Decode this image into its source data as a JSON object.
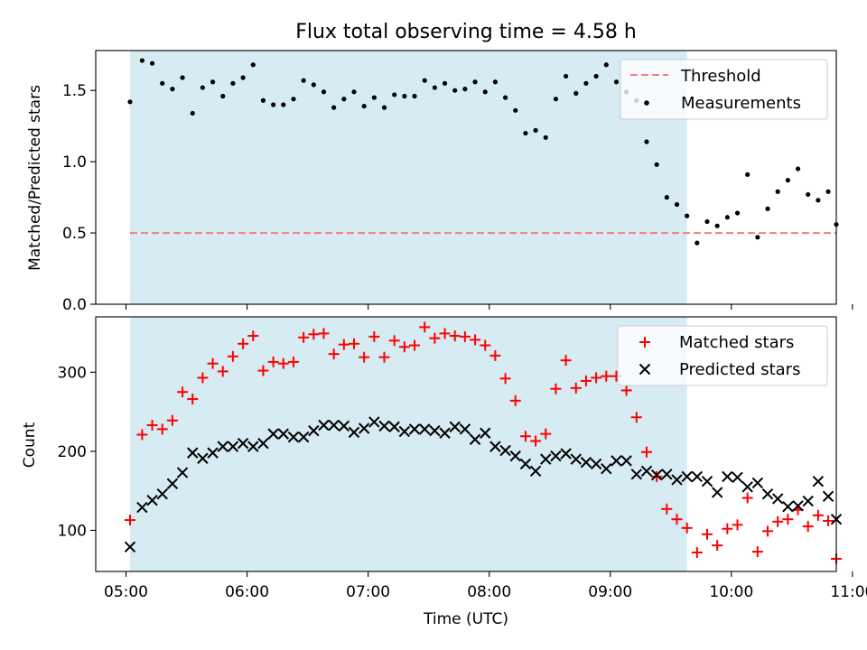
{
  "figure": {
    "title": "Flux total observing time = 4.58 h",
    "xlabel": "Time (UTC)"
  },
  "chart_data": [
    {
      "type": "scatter",
      "ylabel": "Matched/Predicted stars",
      "ylim": [
        0,
        1.78
      ],
      "xlim": [
        "04:45",
        "10:52"
      ],
      "yticks": [
        0.0,
        0.5,
        1.0,
        1.5
      ],
      "ytick_labels": [
        "0.0",
        "0.5",
        "1.0",
        "1.5"
      ],
      "legend_position": "top-right",
      "shaded_span": {
        "start": "05:02",
        "end": "09:38",
        "color": "#add8e6"
      },
      "threshold": {
        "name": "Threshold",
        "y": 0.5,
        "x_start": "05:02",
        "x_end": "10:52",
        "color": "#f08080"
      },
      "series": [
        {
          "name": "Measurements",
          "marker": "dot",
          "color": "#000000",
          "points": [
            [
              "05:02",
              1.42
            ],
            [
              "05:08",
              1.71
            ],
            [
              "05:13",
              1.69
            ],
            [
              "05:18",
              1.55
            ],
            [
              "05:23",
              1.51
            ],
            [
              "05:28",
              1.59
            ],
            [
              "05:33",
              1.34
            ],
            [
              "05:38",
              1.52
            ],
            [
              "05:43",
              1.56
            ],
            [
              "05:48",
              1.46
            ],
            [
              "05:53",
              1.55
            ],
            [
              "05:58",
              1.59
            ],
            [
              "06:03",
              1.68
            ],
            [
              "06:08",
              1.43
            ],
            [
              "06:13",
              1.4
            ],
            [
              "06:18",
              1.4
            ],
            [
              "06:23",
              1.44
            ],
            [
              "06:28",
              1.57
            ],
            [
              "06:33",
              1.54
            ],
            [
              "06:38",
              1.49
            ],
            [
              "06:43",
              1.38
            ],
            [
              "06:48",
              1.44
            ],
            [
              "06:53",
              1.49
            ],
            [
              "06:58",
              1.39
            ],
            [
              "07:03",
              1.45
            ],
            [
              "07:08",
              1.38
            ],
            [
              "07:13",
              1.47
            ],
            [
              "07:18",
              1.46
            ],
            [
              "07:23",
              1.46
            ],
            [
              "07:28",
              1.57
            ],
            [
              "07:33",
              1.52
            ],
            [
              "07:38",
              1.55
            ],
            [
              "07:43",
              1.5
            ],
            [
              "07:48",
              1.51
            ],
            [
              "07:53",
              1.56
            ],
            [
              "07:58",
              1.49
            ],
            [
              "08:03",
              1.56
            ],
            [
              "08:08",
              1.45
            ],
            [
              "08:13",
              1.36
            ],
            [
              "08:18",
              1.2
            ],
            [
              "08:23",
              1.22
            ],
            [
              "08:28",
              1.17
            ],
            [
              "08:33",
              1.44
            ],
            [
              "08:38",
              1.6
            ],
            [
              "08:43",
              1.48
            ],
            [
              "08:48",
              1.55
            ],
            [
              "08:53",
              1.6
            ],
            [
              "08:58",
              1.68
            ],
            [
              "09:03",
              1.56
            ],
            [
              "09:08",
              1.49
            ],
            [
              "09:13",
              1.43
            ],
            [
              "09:18",
              1.14
            ],
            [
              "09:23",
              0.98
            ],
            [
              "09:28",
              0.75
            ],
            [
              "09:33",
              0.7
            ],
            [
              "09:38",
              0.62
            ],
            [
              "09:43",
              0.43
            ],
            [
              "09:48",
              0.58
            ],
            [
              "09:53",
              0.55
            ],
            [
              "09:58",
              0.61
            ],
            [
              "10:03",
              0.64
            ],
            [
              "10:08",
              0.91
            ],
            [
              "10:13",
              0.47
            ],
            [
              "10:18",
              0.67
            ],
            [
              "10:23",
              0.79
            ],
            [
              "10:28",
              0.87
            ],
            [
              "10:33",
              0.95
            ],
            [
              "10:38",
              0.77
            ],
            [
              "10:43",
              0.73
            ],
            [
              "10:48",
              0.79
            ],
            [
              "10:52",
              0.56
            ]
          ]
        }
      ]
    },
    {
      "type": "scatter",
      "ylabel": "Count",
      "ylim": [
        48,
        370
      ],
      "xlim": [
        "04:45",
        "10:52"
      ],
      "yticks": [
        100,
        200,
        300
      ],
      "ytick_labels": [
        "100",
        "200",
        "300"
      ],
      "xticks": [
        "05:00",
        "06:00",
        "07:00",
        "08:00",
        "09:00",
        "10:00",
        "11:00"
      ],
      "xtick_labels": [
        "05:00",
        "06:00",
        "07:00",
        "08:00",
        "09:00",
        "10:00",
        "11:00"
      ],
      "legend_position": "top-right",
      "shaded_span": {
        "start": "05:02",
        "end": "09:38",
        "color": "#add8e6"
      },
      "series": [
        {
          "name": "Matched stars",
          "marker": "plus",
          "color": "#ff0000",
          "points": [
            [
              "05:02",
              113
            ],
            [
              "05:08",
              221
            ],
            [
              "05:13",
              233
            ],
            [
              "05:18",
              228
            ],
            [
              "05:23",
              239
            ],
            [
              "05:28",
              275
            ],
            [
              "05:33",
              266
            ],
            [
              "05:38",
              293
            ],
            [
              "05:43",
              311
            ],
            [
              "05:48",
              301
            ],
            [
              "05:53",
              320
            ],
            [
              "05:58",
              336
            ],
            [
              "06:03",
              346
            ],
            [
              "06:08",
              302
            ],
            [
              "06:13",
              313
            ],
            [
              "06:18",
              311
            ],
            [
              "06:23",
              313
            ],
            [
              "06:28",
              344
            ],
            [
              "06:33",
              348
            ],
            [
              "06:38",
              349
            ],
            [
              "06:43",
              323
            ],
            [
              "06:48",
              335
            ],
            [
              "06:53",
              336
            ],
            [
              "06:58",
              319
            ],
            [
              "07:03",
              345
            ],
            [
              "07:08",
              319
            ],
            [
              "07:13",
              340
            ],
            [
              "07:18",
              332
            ],
            [
              "07:23",
              334
            ],
            [
              "07:28",
              357
            ],
            [
              "07:33",
              343
            ],
            [
              "07:38",
              349
            ],
            [
              "07:43",
              346
            ],
            [
              "07:48",
              345
            ],
            [
              "07:53",
              341
            ],
            [
              "07:58",
              334
            ],
            [
              "08:03",
              321
            ],
            [
              "08:08",
              292
            ],
            [
              "08:13",
              264
            ],
            [
              "08:18",
              219
            ],
            [
              "08:23",
              213
            ],
            [
              "08:28",
              222
            ],
            [
              "08:33",
              279
            ],
            [
              "08:38",
              315
            ],
            [
              "08:43",
              280
            ],
            [
              "08:48",
              289
            ],
            [
              "08:53",
              293
            ],
            [
              "08:58",
              295
            ],
            [
              "09:03",
              295
            ],
            [
              "09:08",
              277
            ],
            [
              "09:13",
              243
            ],
            [
              "09:18",
              199
            ],
            [
              "09:23",
              168
            ],
            [
              "09:28",
              127
            ],
            [
              "09:33",
              114
            ],
            [
              "09:38",
              103
            ],
            [
              "09:43",
              72
            ],
            [
              "09:48",
              95
            ],
            [
              "09:53",
              81
            ],
            [
              "09:58",
              102
            ],
            [
              "10:03",
              107
            ],
            [
              "10:08",
              141
            ],
            [
              "10:13",
              73
            ],
            [
              "10:18",
              99
            ],
            [
              "10:23",
              111
            ],
            [
              "10:28",
              114
            ],
            [
              "10:33",
              126
            ],
            [
              "10:38",
              105
            ],
            [
              "10:43",
              119
            ],
            [
              "10:48",
              112
            ],
            [
              "10:52",
              64
            ]
          ]
        },
        {
          "name": "Predicted stars",
          "marker": "x",
          "color": "#000000",
          "points": [
            [
              "05:02",
              79
            ],
            [
              "05:08",
              129
            ],
            [
              "05:13",
              138
            ],
            [
              "05:18",
              146
            ],
            [
              "05:23",
              159
            ],
            [
              "05:28",
              173
            ],
            [
              "05:33",
              198
            ],
            [
              "05:38",
              191
            ],
            [
              "05:43",
              198
            ],
            [
              "05:48",
              206
            ],
            [
              "05:53",
              206
            ],
            [
              "05:58",
              210
            ],
            [
              "06:03",
              206
            ],
            [
              "06:08",
              210
            ],
            [
              "06:13",
              222
            ],
            [
              "06:18",
              222
            ],
            [
              "06:23",
              218
            ],
            [
              "06:28",
              218
            ],
            [
              "06:33",
              226
            ],
            [
              "06:38",
              233
            ],
            [
              "06:43",
              233
            ],
            [
              "06:48",
              232
            ],
            [
              "06:53",
              224
            ],
            [
              "06:58",
              229
            ],
            [
              "07:03",
              237
            ],
            [
              "07:08",
              232
            ],
            [
              "07:13",
              231
            ],
            [
              "07:18",
              225
            ],
            [
              "07:23",
              228
            ],
            [
              "07:28",
              228
            ],
            [
              "07:33",
              226
            ],
            [
              "07:38",
              223
            ],
            [
              "07:43",
              231
            ],
            [
              "07:48",
              228
            ],
            [
              "07:53",
              215
            ],
            [
              "07:58",
              223
            ],
            [
              "08:03",
              206
            ],
            [
              "08:08",
              201
            ],
            [
              "08:13",
              194
            ],
            [
              "08:18",
              184
            ],
            [
              "08:23",
              175
            ],
            [
              "08:28",
              190
            ],
            [
              "08:33",
              194
            ],
            [
              "08:38",
              197
            ],
            [
              "08:43",
              190
            ],
            [
              "08:48",
              186
            ],
            [
              "08:53",
              184
            ],
            [
              "08:58",
              178
            ],
            [
              "09:03",
              188
            ],
            [
              "09:08",
              188
            ],
            [
              "09:13",
              171
            ],
            [
              "09:18",
              175
            ],
            [
              "09:23",
              170
            ],
            [
              "09:28",
              171
            ],
            [
              "09:33",
              164
            ],
            [
              "09:38",
              168
            ],
            [
              "09:43",
              168
            ],
            [
              "09:48",
              162
            ],
            [
              "09:53",
              148
            ],
            [
              "09:58",
              168
            ],
            [
              "10:03",
              167
            ],
            [
              "10:08",
              155
            ],
            [
              "10:13",
              160
            ],
            [
              "10:18",
              146
            ],
            [
              "10:23",
              140
            ],
            [
              "10:28",
              130
            ],
            [
              "10:33",
              131
            ],
            [
              "10:38",
              137
            ],
            [
              "10:43",
              162
            ],
            [
              "10:48",
              143
            ],
            [
              "10:52",
              114
            ]
          ]
        }
      ]
    }
  ]
}
